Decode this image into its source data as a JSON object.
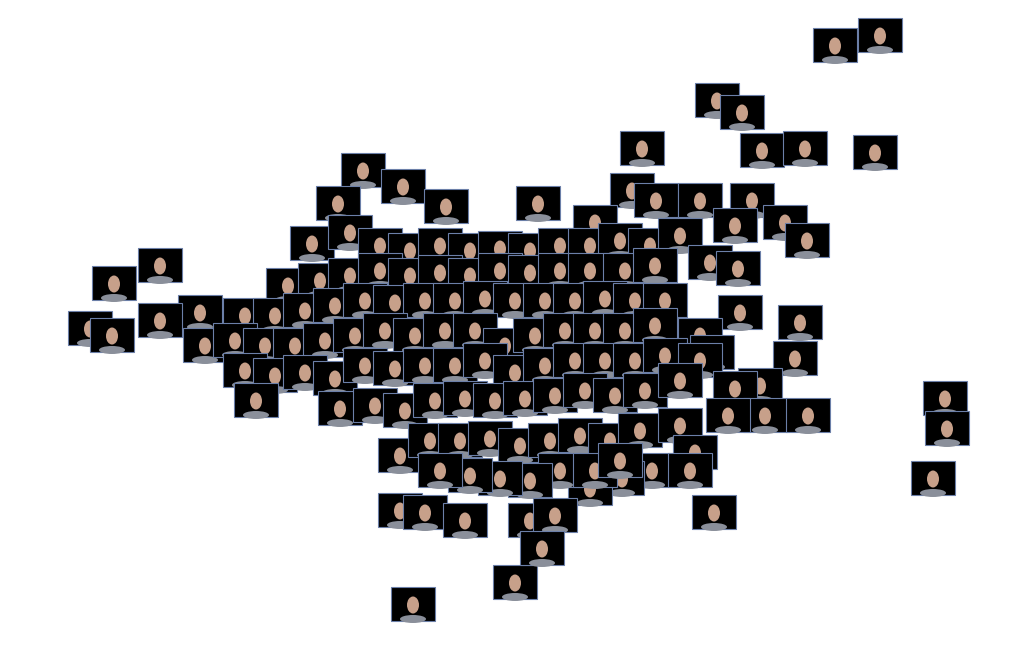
{
  "chart_data": {
    "type": "scatter",
    "x": [
      363,
      403,
      338,
      446,
      538,
      632,
      656,
      595,
      700,
      752,
      735,
      785,
      312,
      350,
      380,
      410,
      440,
      470,
      500,
      530,
      560,
      590,
      620,
      650,
      680,
      710,
      738,
      288,
      320,
      350,
      380,
      410,
      440,
      470,
      500,
      530,
      560,
      590,
      625,
      655,
      200,
      245,
      275,
      305,
      335,
      365,
      395,
      425,
      455,
      485,
      515,
      545,
      575,
      605,
      635,
      665,
      740,
      800,
      160,
      205,
      235,
      265,
      295,
      325,
      355,
      385,
      415,
      445,
      475,
      505,
      535,
      565,
      595,
      625,
      655,
      700,
      712,
      795,
      245,
      275,
      305,
      335,
      365,
      395,
      425,
      455,
      485,
      515,
      545,
      575,
      605,
      635,
      665,
      700,
      760,
      340,
      375,
      405,
      435,
      465,
      495,
      525,
      555,
      585,
      615,
      645,
      680,
      735,
      765,
      808,
      728,
      400,
      430,
      460,
      490,
      520,
      550,
      580,
      610,
      640,
      680,
      695,
      652,
      622,
      590,
      560,
      530,
      500,
      470,
      440,
      400,
      425,
      465,
      530,
      555,
      595,
      620,
      690,
      835,
      880,
      717,
      742,
      762,
      805,
      875,
      642,
      807,
      945,
      947,
      933,
      714,
      413,
      515,
      542,
      256,
      90,
      112,
      114,
      160
    ],
    "y": [
      170,
      186,
      203,
      206,
      203,
      190,
      200,
      222,
      200,
      200,
      225,
      222,
      243,
      232,
      245,
      250,
      245,
      250,
      248,
      250,
      245,
      245,
      240,
      245,
      235,
      262,
      268,
      285,
      280,
      275,
      270,
      275,
      272,
      275,
      270,
      272,
      270,
      270,
      270,
      265,
      312,
      315,
      315,
      310,
      305,
      300,
      302,
      300,
      300,
      298,
      300,
      300,
      300,
      298,
      300,
      300,
      312,
      322,
      320,
      345,
      340,
      345,
      345,
      340,
      335,
      330,
      335,
      330,
      330,
      345,
      335,
      330,
      330,
      330,
      325,
      335,
      352,
      358,
      370,
      375,
      372,
      378,
      365,
      368,
      365,
      365,
      360,
      372,
      365,
      360,
      360,
      360,
      355,
      360,
      385,
      408,
      405,
      410,
      400,
      398,
      400,
      398,
      395,
      390,
      395,
      390,
      380,
      388,
      415,
      415,
      415,
      455,
      440,
      440,
      438,
      445,
      440,
      435,
      440,
      430,
      425,
      452,
      470,
      478,
      488,
      470,
      480,
      478,
      475,
      470,
      510,
      512,
      520,
      520,
      515,
      470,
      460,
      470,
      45,
      35,
      100,
      112,
      150,
      148,
      152,
      148,
      240,
      398,
      428,
      478,
      512,
      604,
      582,
      548,
      400,
      328,
      335,
      283,
      265
    ],
    "xlim": [
      0,
      1026
    ],
    "ylim": [
      660,
      0
    ],
    "color": "#000000",
    "tick_labels": false
  }
}
